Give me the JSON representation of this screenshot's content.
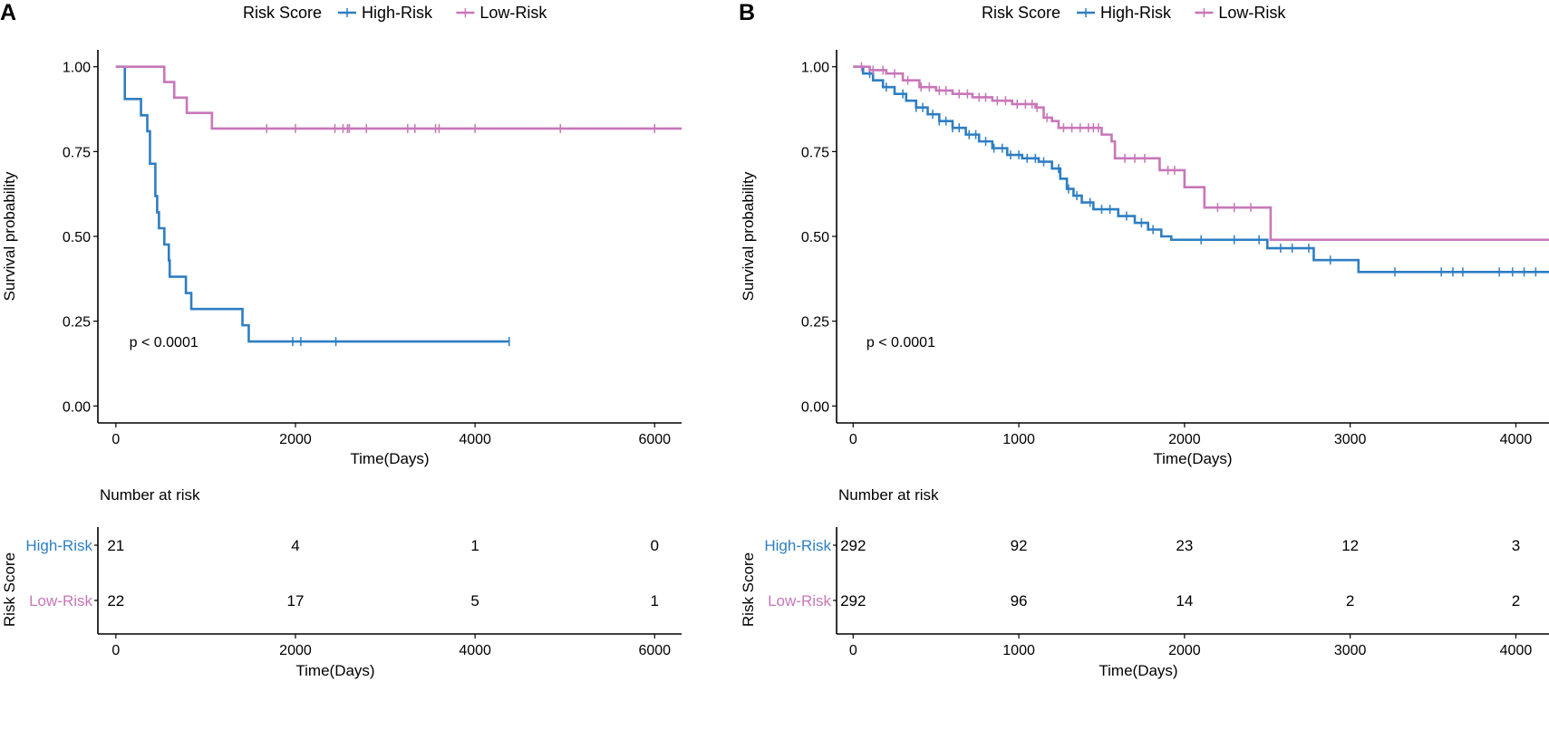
{
  "colors": {
    "high": "#2E7EC2",
    "low": "#C877B8",
    "axis": "#000000"
  },
  "panels": [
    {
      "label": "A",
      "legend": {
        "title": "Risk Score",
        "items": [
          "High-Risk",
          "Low-Risk"
        ]
      },
      "chart_data": {
        "type": "line",
        "subtype": "kaplan-meier",
        "title": "",
        "xlabel": "Time(Days)",
        "ylabel": "Survival probability",
        "xlim": [
          -200,
          6300
        ],
        "ylim": [
          -0.05,
          1.05
        ],
        "xticks": [
          0,
          2000,
          4000,
          6000
        ],
        "yticks": [
          0,
          0.25,
          0.5,
          0.75,
          1.0
        ],
        "ytick_labels": [
          "0.00",
          "0.25",
          "0.50",
          "0.75",
          "1.00"
        ],
        "annotation": "p < 0.0001",
        "annotation_at": [
          150,
          0.19
        ],
        "series": [
          {
            "name": "High-Risk",
            "color_key": "high",
            "steps": [
              [
                0,
                1.0
              ],
              [
                100,
                0.905
              ],
              [
                280,
                0.857
              ],
              [
                350,
                0.81
              ],
              [
                380,
                0.714
              ],
              [
                440,
                0.619
              ],
              [
                460,
                0.571
              ],
              [
                480,
                0.524
              ],
              [
                540,
                0.476
              ],
              [
                590,
                0.429
              ],
              [
                600,
                0.381
              ],
              [
                780,
                0.333
              ],
              [
                840,
                0.286
              ],
              [
                1410,
                0.238
              ],
              [
                1480,
                0.19
              ]
            ],
            "end": 4380,
            "censors": [
              1970,
              2060,
              2450,
              4380
            ]
          },
          {
            "name": "Low-Risk",
            "color_key": "low",
            "steps": [
              [
                0,
                1.0
              ],
              [
                540,
                0.955
              ],
              [
                650,
                0.909
              ],
              [
                790,
                0.864
              ],
              [
                1070,
                0.818
              ]
            ],
            "end": 6300,
            "censors": [
              1680,
              2000,
              2440,
              2530,
              2580,
              2600,
              2790,
              3250,
              3330,
              3560,
              3600,
              4000,
              4950,
              6000
            ]
          }
        ]
      },
      "risk_table": {
        "title": "Number at risk",
        "ylabel": "Risk Score",
        "xlabel": "Time(Days)",
        "times": [
          0,
          2000,
          4000,
          6000
        ],
        "rows": [
          {
            "name": "High-Risk",
            "color_key": "high",
            "values": [
              "21",
              "4",
              "1",
              "0"
            ]
          },
          {
            "name": "Low-Risk",
            "color_key": "low",
            "values": [
              "22",
              "17",
              "5",
              "1"
            ]
          }
        ]
      }
    },
    {
      "label": "B",
      "legend": {
        "title": "Risk Score",
        "items": [
          "High-Risk",
          "Low-Risk"
        ]
      },
      "chart_data": {
        "type": "line",
        "subtype": "kaplan-meier",
        "title": "",
        "xlabel": "Time(Days)",
        "ylabel": "Survival probability",
        "xlim": [
          -100,
          4200
        ],
        "ylim": [
          -0.05,
          1.05
        ],
        "xticks": [
          0,
          1000,
          2000,
          3000,
          4000
        ],
        "yticks": [
          0,
          0.25,
          0.5,
          0.75,
          1.0
        ],
        "ytick_labels": [
          "0.00",
          "0.25",
          "0.50",
          "0.75",
          "1.00"
        ],
        "annotation": "p < 0.0001",
        "annotation_at": [
          80,
          0.19
        ],
        "series": [
          {
            "name": "High-Risk",
            "color_key": "high",
            "steps": [
              [
                0,
                1.0
              ],
              [
                60,
                0.98
              ],
              [
                120,
                0.96
              ],
              [
                180,
                0.94
              ],
              [
                250,
                0.92
              ],
              [
                320,
                0.9
              ],
              [
                380,
                0.88
              ],
              [
                450,
                0.86
              ],
              [
                520,
                0.84
              ],
              [
                600,
                0.82
              ],
              [
                680,
                0.8
              ],
              [
                760,
                0.78
              ],
              [
                840,
                0.76
              ],
              [
                930,
                0.74
              ],
              [
                1020,
                0.73
              ],
              [
                1120,
                0.72
              ],
              [
                1200,
                0.7
              ],
              [
                1250,
                0.67
              ],
              [
                1290,
                0.64
              ],
              [
                1330,
                0.62
              ],
              [
                1380,
                0.6
              ],
              [
                1450,
                0.58
              ],
              [
                1600,
                0.56
              ],
              [
                1700,
                0.54
              ],
              [
                1780,
                0.52
              ],
              [
                1860,
                0.5
              ],
              [
                1920,
                0.49
              ],
              [
                2500,
                0.465
              ],
              [
                2780,
                0.43
              ],
              [
                3050,
                0.395
              ]
            ],
            "end": 4200,
            "censors": [
              100,
              200,
              300,
              380,
              420,
              480,
              520,
              560,
              600,
              640,
              700,
              740,
              800,
              850,
              900,
              950,
              1000,
              1050,
              1100,
              1150,
              1240,
              1300,
              1350,
              1430,
              1500,
              1550,
              1650,
              1740,
              1810,
              2100,
              2300,
              2450,
              2580,
              2650,
              2750,
              2880,
              3270,
              3550,
              3620,
              3680,
              3900,
              3980,
              4050,
              4120
            ]
          },
          {
            "name": "Low-Risk",
            "color_key": "low",
            "steps": [
              [
                0,
                1.0
              ],
              [
                100,
                0.99
              ],
              [
                200,
                0.98
              ],
              [
                300,
                0.96
              ],
              [
                400,
                0.94
              ],
              [
                500,
                0.93
              ],
              [
                600,
                0.92
              ],
              [
                720,
                0.91
              ],
              [
                840,
                0.9
              ],
              [
                960,
                0.89
              ],
              [
                1100,
                0.88
              ],
              [
                1150,
                0.85
              ],
              [
                1200,
                0.84
              ],
              [
                1240,
                0.82
              ],
              [
                1500,
                0.8
              ],
              [
                1560,
                0.78
              ],
              [
                1580,
                0.73
              ],
              [
                1850,
                0.695
              ],
              [
                2000,
                0.645
              ],
              [
                2120,
                0.585
              ],
              [
                2520,
                0.49
              ]
            ],
            "end": 4200,
            "censors": [
              50,
              120,
              180,
              250,
              330,
              410,
              460,
              520,
              560,
              640,
              690,
              760,
              800,
              870,
              920,
              990,
              1040,
              1080,
              1110,
              1170,
              1270,
              1320,
              1370,
              1420,
              1450,
              1480,
              1640,
              1700,
              1760,
              1900,
              1940,
              2200,
              2300,
              2400
            ]
          }
        ]
      },
      "risk_table": {
        "title": "Number at risk",
        "ylabel": "Risk Score",
        "xlabel": "Time(Days)",
        "times": [
          0,
          1000,
          2000,
          3000,
          4000
        ],
        "rows": [
          {
            "name": "High-Risk",
            "color_key": "high",
            "values": [
              "292",
              "92",
              "23",
              "12",
              "3"
            ]
          },
          {
            "name": "Low-Risk",
            "color_key": "low",
            "values": [
              "292",
              "96",
              "14",
              "2",
              "2"
            ]
          }
        ]
      }
    }
  ]
}
